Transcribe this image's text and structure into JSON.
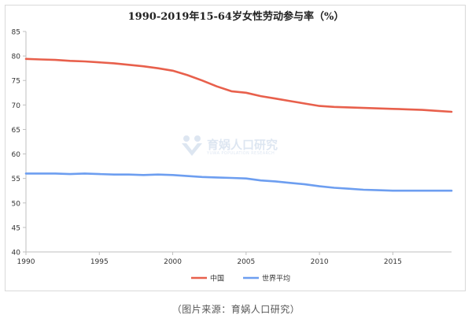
{
  "chart_data": {
    "type": "line",
    "title": "1990-2019年15-64岁女性劳动参与率（%）",
    "xlim": [
      1990,
      2019
    ],
    "ylim": [
      40,
      85
    ],
    "x_ticks": [
      1990,
      1995,
      2000,
      2005,
      2010,
      2015
    ],
    "y_ticks": [
      40,
      45,
      50,
      55,
      60,
      65,
      70,
      75,
      80,
      85
    ],
    "grid": false,
    "legend_position": "bottom-center",
    "x": [
      1990,
      1991,
      1992,
      1993,
      1994,
      1995,
      1996,
      1997,
      1998,
      1999,
      2000,
      2001,
      2002,
      2003,
      2004,
      2005,
      2006,
      2007,
      2008,
      2009,
      2010,
      2011,
      2012,
      2013,
      2014,
      2015,
      2016,
      2017,
      2018,
      2019
    ],
    "series": [
      {
        "name": "中国",
        "color": "#e8604c",
        "values": [
          79.4,
          79.3,
          79.2,
          79.0,
          78.9,
          78.7,
          78.5,
          78.2,
          77.9,
          77.5,
          77.0,
          76.1,
          75.0,
          73.8,
          72.8,
          72.5,
          71.8,
          71.3,
          70.8,
          70.3,
          69.8,
          69.6,
          69.5,
          69.4,
          69.3,
          69.2,
          69.1,
          69.0,
          68.8,
          68.6
        ]
      },
      {
        "name": "世界平均",
        "color": "#6d9ef0",
        "values": [
          56.0,
          56.0,
          56.0,
          55.9,
          56.0,
          55.9,
          55.8,
          55.8,
          55.7,
          55.8,
          55.7,
          55.5,
          55.3,
          55.2,
          55.1,
          55.0,
          54.6,
          54.4,
          54.1,
          53.8,
          53.4,
          53.1,
          52.9,
          52.7,
          52.6,
          52.5,
          52.5,
          52.5,
          52.5,
          52.5
        ]
      }
    ]
  },
  "watermark": {
    "text": "育娲人口研究",
    "subtext": "YUWA POPULATION RESEARCH"
  },
  "caption": "（图片来源：育娲人口研究）"
}
